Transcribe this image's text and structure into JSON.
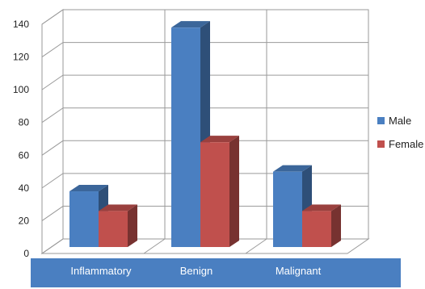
{
  "chart_data": {
    "type": "bar",
    "categories": [
      "Inflammatory",
      "Benign",
      "Malignant"
    ],
    "series": [
      {
        "name": "Male",
        "values": [
          34,
          134,
          46
        ],
        "color": "#4a7fc1"
      },
      {
        "name": "Female",
        "values": [
          22,
          64,
          22
        ],
        "color": "#c0504d"
      }
    ],
    "ylim": [
      0,
      140
    ],
    "yticks": [
      0,
      20,
      40,
      60,
      80,
      100,
      120,
      140
    ],
    "grid": true,
    "three_d": true,
    "legend_position": "right",
    "category_band_color": "#4a7fc1"
  }
}
